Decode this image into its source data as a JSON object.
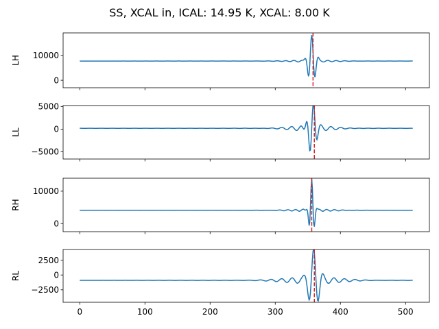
{
  "chart_data": {
    "title": "SS, XCAL in, ICAL: 14.95 K, XCAL: 8.00 K",
    "type": "line",
    "series_color": "#1f77b4",
    "marker_color": "#d62728",
    "x_ticks": [
      0,
      100,
      200,
      300,
      400,
      500
    ],
    "xlim": [
      -25.6,
      536.6
    ],
    "n_points": 512,
    "panels": [
      {
        "ylabel": "LH",
        "ylim": [
          -3000,
          19000
        ],
        "y_ticks": [
          0,
          10000
        ],
        "y_tick_labels": [
          "0",
          "10000"
        ],
        "vline_x": 358,
        "baseline": 7700,
        "wave": {
          "center": 356,
          "amp": 10000,
          "sigma": 5.0,
          "period": 10.5,
          "phase": 0.0,
          "ripple_amp": 450,
          "ripple_sigma": 30,
          "ripple_period": 13,
          "ripple_phase": 0.6
        }
      },
      {
        "ylabel": "LL",
        "ylim": [
          -6600,
          5200
        ],
        "y_ticks": [
          -5000,
          0,
          5000
        ],
        "y_tick_labels": [
          "−5000",
          "0",
          "5000"
        ],
        "vline_x": 360,
        "baseline": 180,
        "wave": {
          "center": 356,
          "amp": 6200,
          "sigma": 5.5,
          "period": 11.5,
          "phase": -1.65,
          "ripple_amp": 600,
          "ripple_sigma": 32,
          "ripple_period": 15,
          "ripple_phase": 0.3
        }
      },
      {
        "ylabel": "RH",
        "ylim": [
          -2500,
          14000
        ],
        "y_ticks": [
          0,
          10000
        ],
        "y_tick_labels": [
          "0",
          "10000"
        ],
        "vline_x": 356,
        "baseline": 4100,
        "wave": {
          "center": 356,
          "amp": 9200,
          "sigma": 3.5,
          "period": 8.5,
          "phase": 0.0,
          "ripple_amp": 400,
          "ripple_sigma": 28,
          "ripple_period": 12,
          "ripple_phase": 0.5
        }
      },
      {
        "ylabel": "RL",
        "ylim": [
          -4600,
          4300
        ],
        "y_ticks": [
          -2500,
          0,
          2500
        ],
        "y_tick_labels": [
          "−2500",
          "0",
          "2500"
        ],
        "vline_x": 360,
        "baseline": -900,
        "wave": {
          "center": 359,
          "amp": 4800,
          "sigma": 7.0,
          "period": 14.5,
          "phase": 0.0,
          "ripple_amp": 550,
          "ripple_sigma": 40,
          "ripple_period": 16,
          "ripple_phase": 0.4
        }
      }
    ]
  }
}
